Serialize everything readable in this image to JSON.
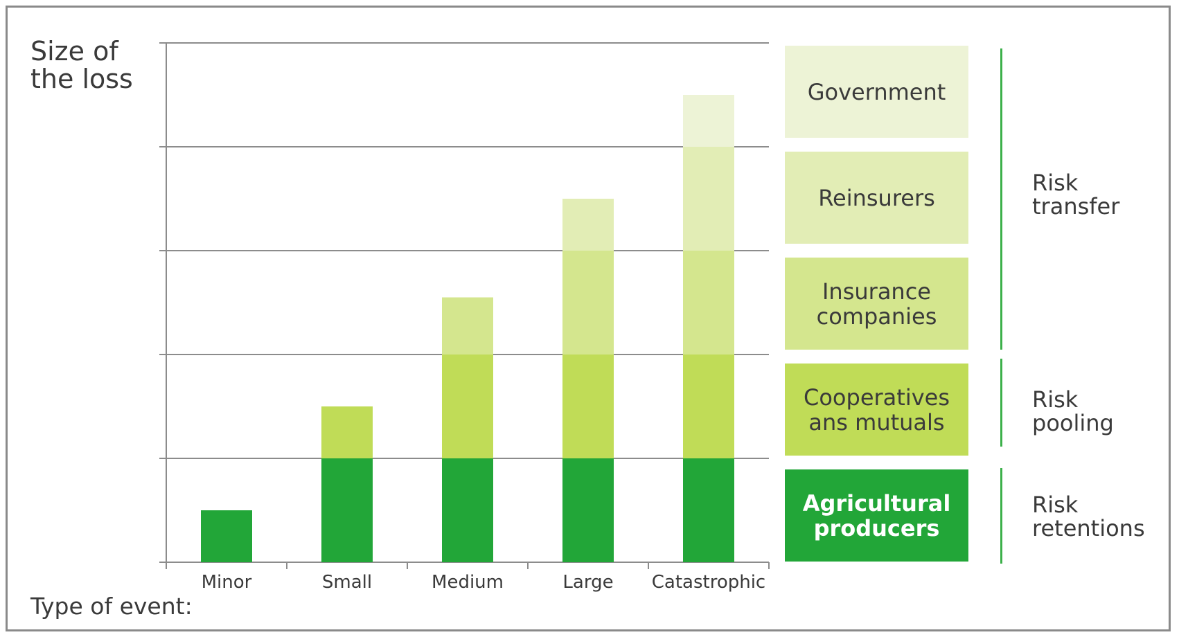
{
  "chart_data": {
    "type": "bar",
    "stacked": true,
    "title": "",
    "ylabel": "Size of\nthe loss",
    "xlabel": "Type of event:",
    "categories": [
      "Minor",
      "Small",
      "Medium",
      "Large",
      "Catastrophic"
    ],
    "ylim": [
      0,
      5
    ],
    "grid": true,
    "series": [
      {
        "name": "Agricultural\nproducers",
        "color": "#22a638",
        "values": [
          0.5,
          1,
          1,
          1,
          1
        ]
      },
      {
        "name": "Cooperatives\nans mutuals",
        "color": "#c0dc57",
        "values": [
          0,
          0.5,
          1,
          1,
          1
        ]
      },
      {
        "name": "Insurance\ncompanies",
        "color": "#d4e68e",
        "values": [
          0,
          0,
          0.55,
          1,
          1
        ]
      },
      {
        "name": "Reinsurers",
        "color": "#e2edb5",
        "values": [
          0,
          0,
          0,
          0.5,
          1
        ]
      },
      {
        "name": "Government",
        "color": "#edf3d6",
        "values": [
          0,
          0,
          0,
          0,
          0.5
        ]
      }
    ],
    "legend_placement": "right",
    "groups": [
      {
        "label": "Risk\ntransfer",
        "series": [
          "Government",
          "Reinsurers",
          "Insurance companies"
        ]
      },
      {
        "label": "Risk\npooling",
        "series": [
          "Cooperatives ans mutuals"
        ]
      },
      {
        "label": "Risk\nretentions",
        "series": [
          "Agricultural producers"
        ]
      }
    ]
  },
  "legend_text_colors": [
    "#ffffff",
    "#3a3a3a",
    "#3a3a3a",
    "#3a3a3a",
    "#3a3a3a"
  ]
}
